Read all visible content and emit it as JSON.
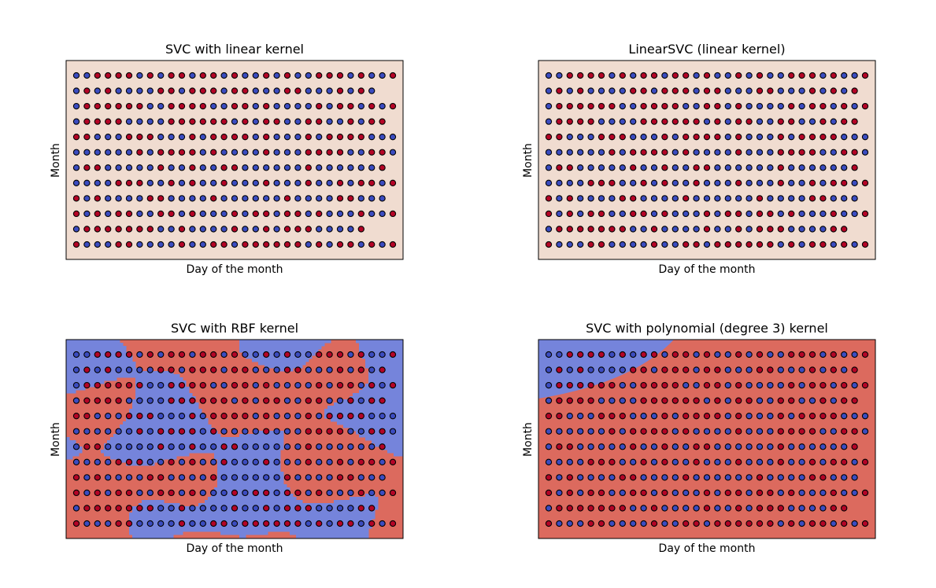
{
  "figure": {
    "panels": [
      {
        "title": "SVC with linear kernel",
        "xlabel": "Day of the month",
        "ylabel": "Month",
        "decision_style": "uniform",
        "base_class": "light"
      },
      {
        "title": "LinearSVC (linear kernel)",
        "xlabel": "Day of the month",
        "ylabel": "Month",
        "decision_style": "uniform",
        "base_class": "light"
      },
      {
        "title": "SVC with RBF kernel",
        "xlabel": "Day of the month",
        "ylabel": "Month",
        "decision_style": "rbf",
        "base_class": "red"
      },
      {
        "title": "SVC with polynomial (degree 3) kernel",
        "xlabel": "Day of the month",
        "ylabel": "Month",
        "decision_style": "poly",
        "base_class": "red"
      }
    ]
  },
  "chart_data": [
    {
      "type": "scatter",
      "title": "SVC with linear kernel",
      "xlabel": "Day of the month",
      "ylabel": "Month",
      "grid": false,
      "legend": "none",
      "x_range": [
        1,
        31
      ],
      "y_range": [
        1,
        12
      ],
      "points_per_row": [
        31,
        29,
        31,
        30,
        31,
        31,
        30,
        31,
        30,
        31,
        28,
        31
      ],
      "colors": {
        "class_0": "#3b4cc0",
        "class_1": "#b40426",
        "region_linear": "#f0dcd0",
        "region_red": "#dc6a5e",
        "region_blue": "#7584db"
      }
    },
    {
      "type": "scatter",
      "title": "LinearSVC (linear kernel)",
      "xlabel": "Day of the month",
      "ylabel": "Month",
      "grid": false,
      "legend": "none",
      "x_range": [
        1,
        31
      ],
      "y_range": [
        1,
        12
      ],
      "points_per_row": [
        31,
        30,
        31,
        30,
        31,
        31,
        30,
        31,
        30,
        31,
        29,
        31
      ],
      "colors": {
        "class_0": "#3b4cc0",
        "class_1": "#b40426",
        "region_linear": "#f0dcd0",
        "region_red": "#dc6a5e",
        "region_blue": "#7584db"
      }
    },
    {
      "type": "scatter",
      "title": "SVC with RBF kernel",
      "xlabel": "Day of the month",
      "ylabel": "Month",
      "grid": false,
      "legend": "none",
      "x_range": [
        1,
        31
      ],
      "y_range": [
        1,
        12
      ],
      "points_per_row": [
        31,
        30,
        31,
        30,
        31,
        31,
        30,
        31,
        30,
        31,
        29,
        31
      ],
      "colors": {
        "class_0": "#3b4cc0",
        "class_1": "#b40426",
        "region_linear": "#f0dcd0",
        "region_red": "#dc6a5e",
        "region_blue": "#7584db"
      }
    },
    {
      "type": "scatter",
      "title": "SVC with polynomial (degree 3) kernel",
      "xlabel": "Day of the month",
      "ylabel": "Month",
      "grid": false,
      "legend": "none",
      "x_range": [
        1,
        31
      ],
      "y_range": [
        1,
        12
      ],
      "points_per_row": [
        31,
        30,
        31,
        30,
        31,
        31,
        30,
        31,
        30,
        31,
        29,
        31
      ],
      "colors": {
        "class_0": "#3b4cc0",
        "class_1": "#b40426",
        "region_linear": "#f0dcd0",
        "region_red": "#dc6a5e",
        "region_blue": "#7584db"
      }
    }
  ]
}
